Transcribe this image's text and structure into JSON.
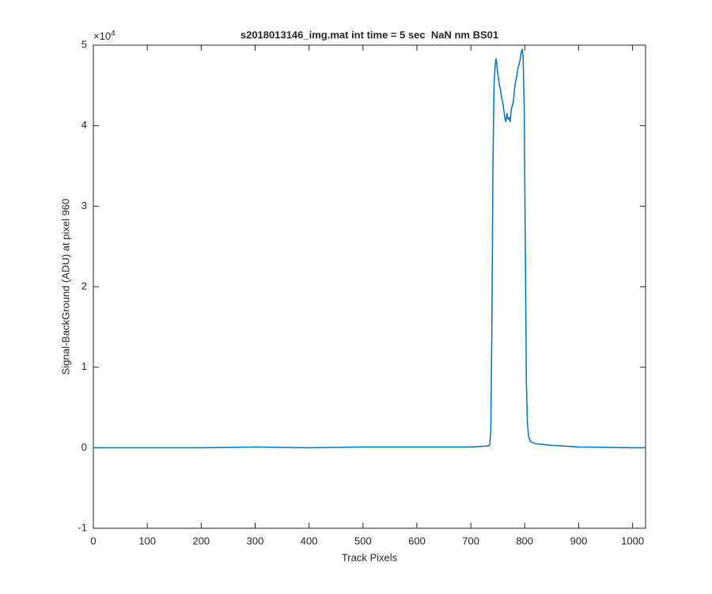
{
  "chart_data": {
    "type": "line",
    "title": "s2018013146_img.mat int time = 5 sec  NaN nm BS01",
    "xlabel": "Track Pixels",
    "ylabel": "Signal-BackGround (ADU) at pixel 960",
    "y_multiplier": {
      "base": "×10",
      "exponent": "4"
    },
    "xlim": [
      0,
      1024
    ],
    "ylim": [
      -1,
      5
    ],
    "xticks": [
      0,
      100,
      200,
      300,
      400,
      500,
      600,
      700,
      800,
      900,
      1000
    ],
    "yticks": [
      -1,
      0,
      1,
      2,
      3,
      4,
      5
    ],
    "grid": false,
    "series": [
      {
        "color": "#0072bd",
        "x": [
          0,
          100,
          200,
          300,
          400,
          500,
          600,
          700,
          730,
          735,
          737,
          739,
          741,
          743,
          745,
          747,
          749,
          751,
          753,
          755,
          757,
          759,
          761,
          763,
          765,
          767,
          769,
          771,
          773,
          775,
          777,
          779,
          781,
          783,
          785,
          787,
          789,
          791,
          793,
          795,
          797,
          799,
          801,
          803,
          805,
          807,
          810,
          820,
          850,
          900,
          1000,
          1024
        ],
        "values": [
          0.0,
          0.0,
          0.0,
          0.01,
          0.0,
          0.01,
          0.01,
          0.01,
          0.02,
          0.03,
          0.2,
          1.5,
          3.5,
          4.5,
          4.75,
          4.83,
          4.7,
          4.6,
          4.5,
          4.45,
          4.35,
          4.3,
          4.2,
          4.1,
          4.05,
          4.15,
          4.08,
          4.1,
          4.05,
          4.2,
          4.25,
          4.3,
          4.45,
          4.55,
          4.6,
          4.7,
          4.75,
          4.8,
          4.9,
          4.95,
          4.85,
          4.2,
          2.5,
          0.8,
          0.3,
          0.15,
          0.08,
          0.05,
          0.03,
          0.01,
          0.0,
          0.0
        ]
      }
    ]
  }
}
